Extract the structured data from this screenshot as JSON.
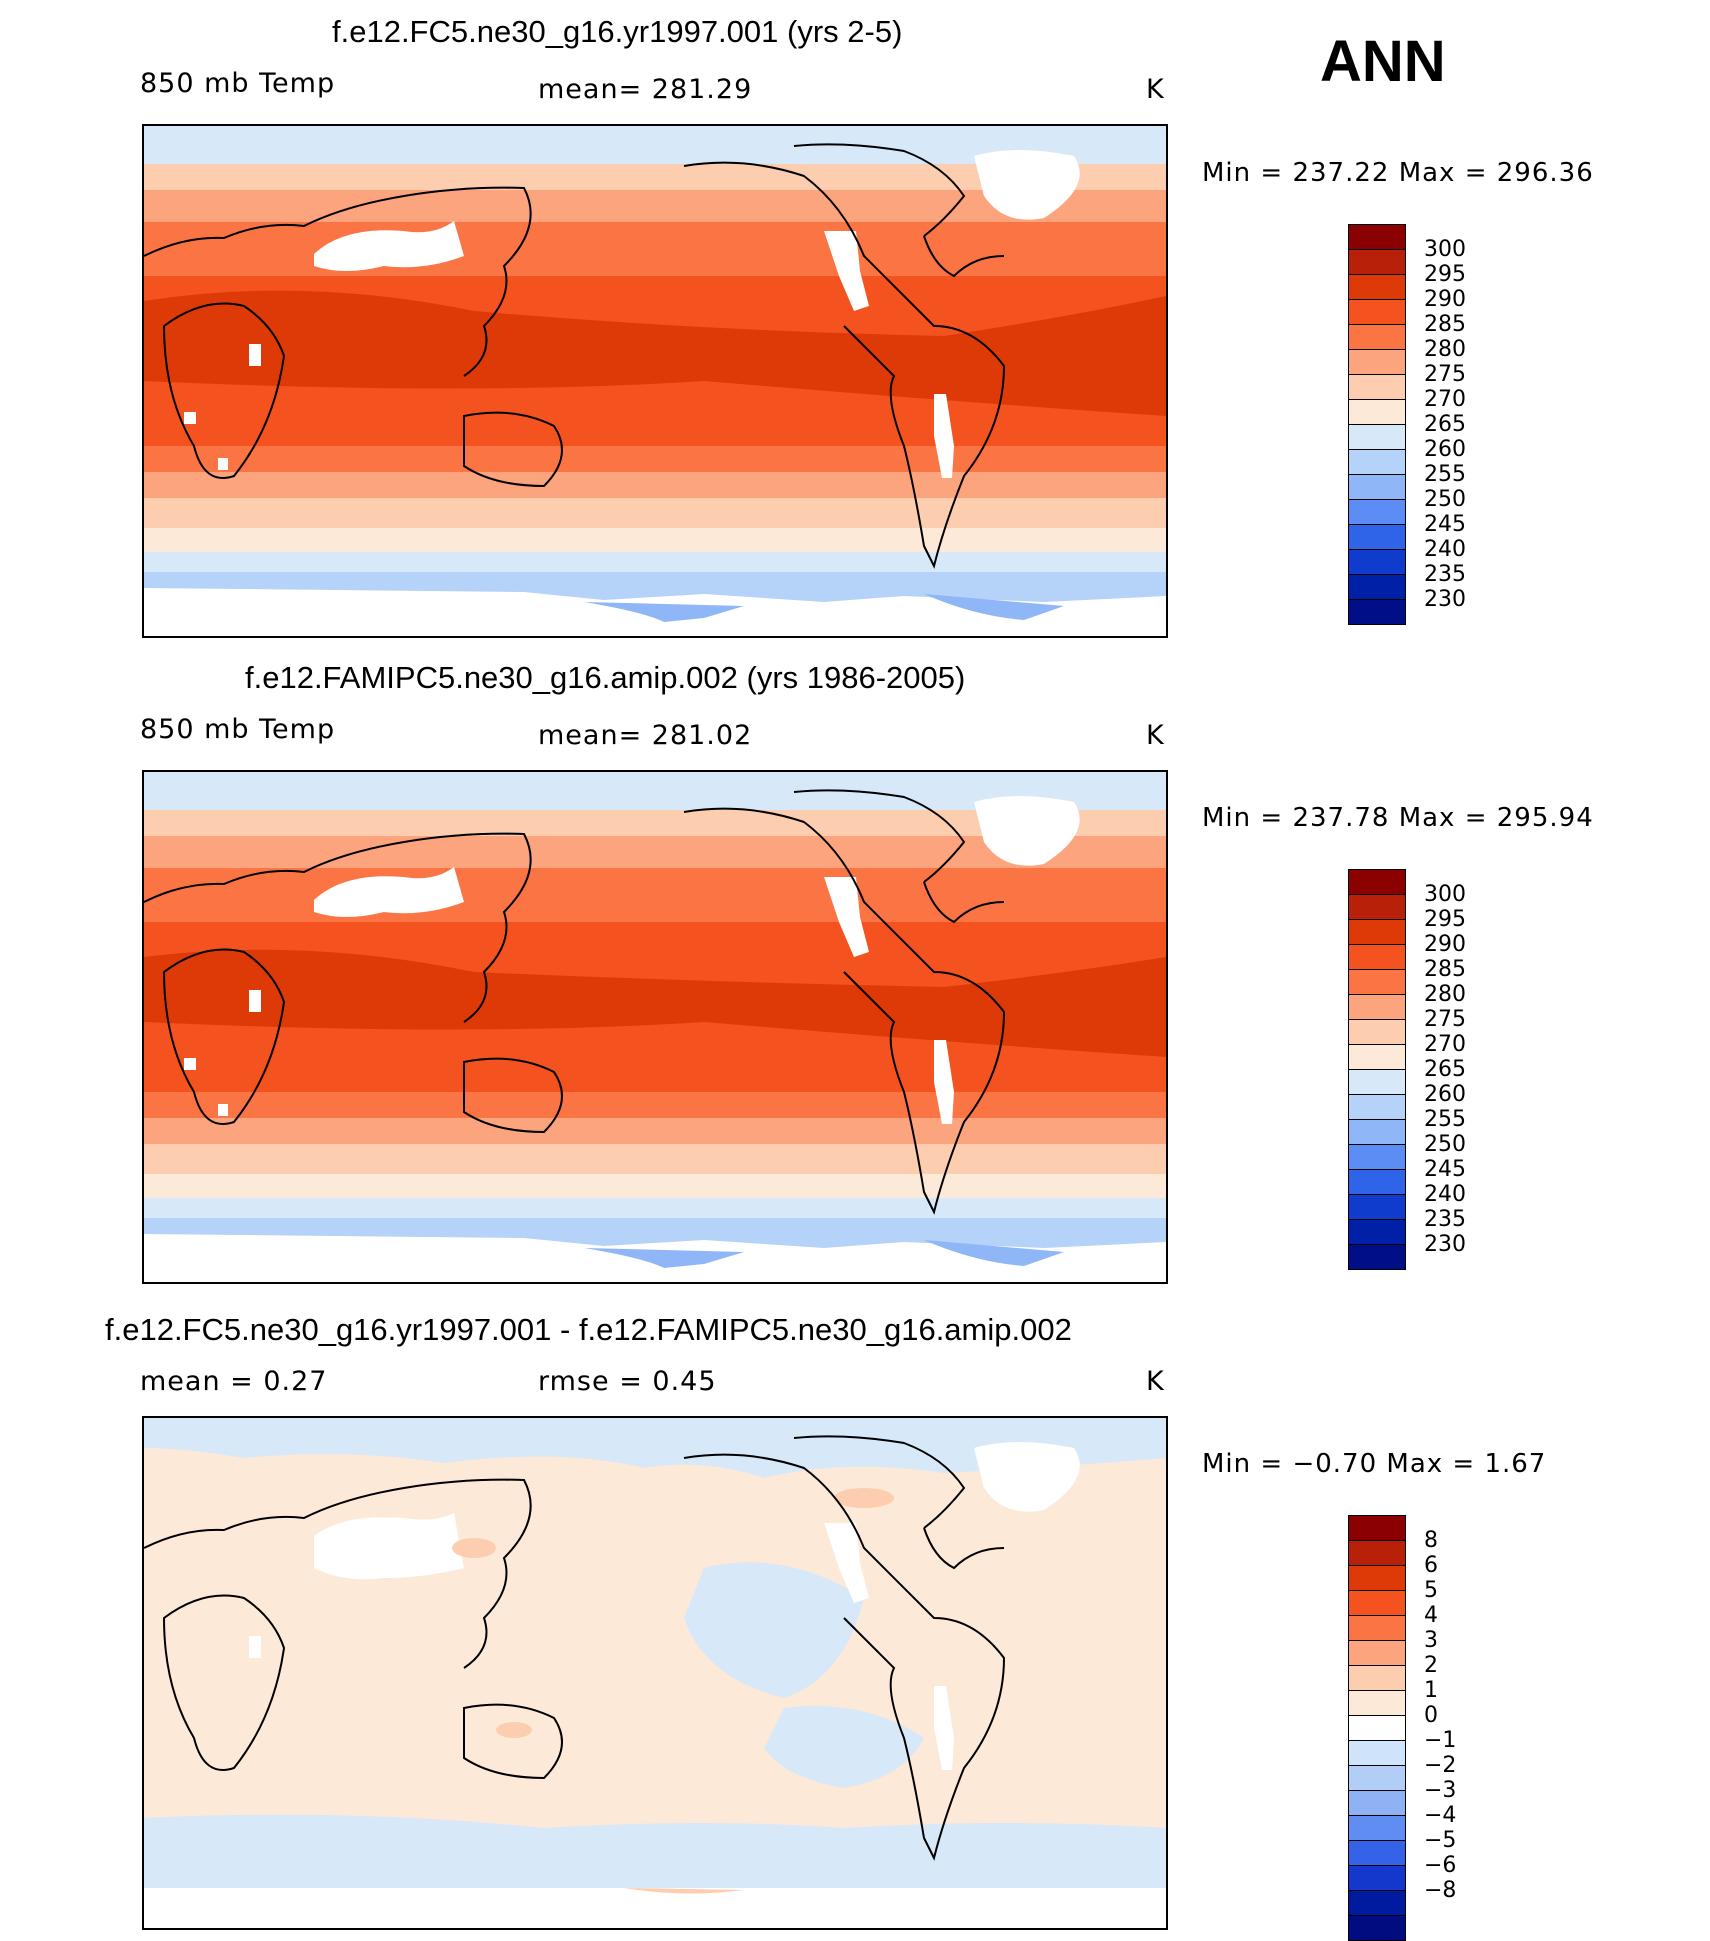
{
  "header": {
    "season": "ANN"
  },
  "panels": [
    {
      "title": "f.e12.FC5.ne30_g16.yr1997.001 (yrs 2-5)",
      "left_label": "850 mb Temp",
      "center_label": "mean= 281.29",
      "units": "K",
      "minmax": "Min = 237.22 Max = 296.36",
      "colorbar": [
        "300",
        "295",
        "290",
        "285",
        "280",
        "275",
        "270",
        "265",
        "260",
        "255",
        "250",
        "245",
        "240",
        "235",
        "230"
      ],
      "type": "absolute"
    },
    {
      "title": "f.e12.FAMIPC5.ne30_g16.amip.002 (yrs 1986-2005)",
      "left_label": "850 mb Temp",
      "center_label": "mean= 281.02",
      "units": "K",
      "minmax": "Min = 237.78 Max = 295.94",
      "colorbar": [
        "300",
        "295",
        "290",
        "285",
        "280",
        "275",
        "270",
        "265",
        "260",
        "255",
        "250",
        "245",
        "240",
        "235",
        "230"
      ],
      "type": "absolute"
    },
    {
      "title": "f.e12.FC5.ne30_g16.yr1997.001 - f.e12.FAMIPC5.ne30_g16.amip.002",
      "left_label": "mean =     0.27",
      "center_label": "rmse =     0.45",
      "units": "K",
      "minmax": "Min =   −0.70 Max =     1.67",
      "colorbar": [
        "8",
        "6",
        "5",
        "4",
        "3",
        "2",
        "1",
        "0",
        "−1",
        "−2",
        "−3",
        "−4",
        "−5",
        "−6",
        "−8"
      ],
      "type": "difference"
    }
  ],
  "colors": {
    "abs": [
      "#8b0000",
      "#b8200a",
      "#dd3a08",
      "#f4521e",
      "#fb7444",
      "#fca47d",
      "#fdcdb0",
      "#fde9d8",
      "#d7e8f8",
      "#b5d2f8",
      "#8fb6f6",
      "#5b8df4",
      "#2f63e8",
      "#0f3ccc",
      "#0020a8",
      "#000f88"
    ],
    "diff": [
      "#8b0000",
      "#b8200a",
      "#dd3a08",
      "#f4521e",
      "#fb7444",
      "#fca47d",
      "#fdcdb0",
      "#fde9d8",
      "#ffffff",
      "#cfe3fa",
      "#b2cdf6",
      "#8fb2f4",
      "#5f8df2",
      "#3463e8",
      "#1438cc",
      "#001b9f",
      "#000c80"
    ]
  }
}
